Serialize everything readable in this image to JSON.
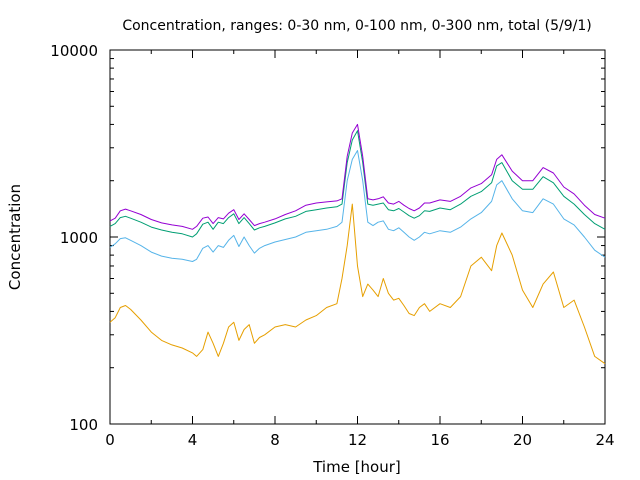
{
  "chart_data": {
    "type": "line",
    "title": "Concentration, ranges: 0-30 nm, 0-100 nm, 0-300 nm, total (5/9/1)",
    "xlabel": "Time [hour]",
    "ylabel": "Concentration",
    "xlim": [
      0,
      24
    ],
    "ylim": [
      100,
      10000
    ],
    "yscale": "log",
    "grid": false,
    "legend": "none",
    "x_ticks": [
      0,
      4,
      8,
      12,
      16,
      20,
      24
    ],
    "x_tick_labels": [
      "0",
      "4",
      "8",
      "12",
      "16",
      "20",
      "24"
    ],
    "y_ticks": [
      100,
      1000,
      10000
    ],
    "y_tick_labels": [
      "100",
      "1000",
      "10000"
    ],
    "x": [
      0,
      0.25,
      0.5,
      0.75,
      1,
      1.5,
      2,
      2.5,
      3,
      3.5,
      4,
      4.2,
      4.5,
      4.75,
      5,
      5.25,
      5.5,
      5.75,
      6,
      6.25,
      6.5,
      6.75,
      7,
      7.25,
      7.5,
      8,
      8.5,
      9,
      9.5,
      10,
      10.5,
      11,
      11.25,
      11.5,
      11.75,
      12,
      12.25,
      12.5,
      12.75,
      13,
      13.25,
      13.5,
      13.75,
      14,
      14.25,
      14.5,
      14.75,
      15,
      15.25,
      15.5,
      16,
      16.5,
      17,
      17.5,
      18,
      18.5,
      18.75,
      19,
      19.5,
      20,
      20.5,
      21,
      21.5,
      22,
      22.5,
      23,
      23.5,
      24
    ],
    "series": [
      {
        "color": "#e69f00",
        "values": [
          350,
          370,
          420,
          430,
          410,
          360,
          310,
          280,
          265,
          255,
          240,
          230,
          250,
          310,
          270,
          230,
          270,
          330,
          350,
          280,
          320,
          340,
          270,
          290,
          300,
          330,
          340,
          330,
          360,
          380,
          420,
          440,
          600,
          900,
          1500,
          700,
          480,
          560,
          520,
          480,
          600,
          500,
          460,
          470,
          430,
          390,
          380,
          420,
          440,
          400,
          440,
          420,
          480,
          700,
          780,
          660,
          900,
          1050,
          800,
          520,
          420,
          560,
          650,
          420,
          460,
          330,
          230,
          210
        ]
      },
      {
        "color": "#56b4e9",
        "values": [
          880,
          920,
          980,
          990,
          960,
          900,
          830,
          790,
          770,
          760,
          740,
          760,
          870,
          900,
          830,
          900,
          880,
          960,
          1020,
          890,
          1000,
          900,
          820,
          870,
          900,
          940,
          970,
          1000,
          1060,
          1080,
          1100,
          1140,
          1200,
          2000,
          2600,
          2900,
          2000,
          1200,
          1150,
          1200,
          1220,
          1100,
          1080,
          1120,
          1060,
          1000,
          960,
          1000,
          1060,
          1040,
          1080,
          1060,
          1130,
          1250,
          1350,
          1550,
          1900,
          2000,
          1600,
          1380,
          1350,
          1600,
          1500,
          1250,
          1160,
          1000,
          850,
          780
        ]
      },
      {
        "color": "#009e73",
        "values": [
          1140,
          1180,
          1270,
          1290,
          1260,
          1200,
          1130,
          1090,
          1060,
          1040,
          1000,
          1040,
          1170,
          1200,
          1100,
          1200,
          1180,
          1270,
          1330,
          1180,
          1270,
          1180,
          1090,
          1120,
          1140,
          1190,
          1250,
          1290,
          1370,
          1400,
          1430,
          1450,
          1500,
          2500,
          3300,
          3700,
          2500,
          1500,
          1480,
          1500,
          1520,
          1400,
          1380,
          1420,
          1360,
          1300,
          1260,
          1300,
          1380,
          1370,
          1430,
          1400,
          1500,
          1650,
          1750,
          1950,
          2400,
          2500,
          2000,
          1800,
          1800,
          2100,
          1950,
          1650,
          1500,
          1320,
          1180,
          1100
        ]
      },
      {
        "color": "#9400d3",
        "values": [
          1220,
          1260,
          1380,
          1410,
          1380,
          1320,
          1240,
          1190,
          1160,
          1140,
          1100,
          1140,
          1260,
          1280,
          1180,
          1270,
          1250,
          1340,
          1400,
          1240,
          1330,
          1240,
          1150,
          1180,
          1200,
          1250,
          1320,
          1380,
          1480,
          1520,
          1540,
          1560,
          1600,
          2700,
          3600,
          4000,
          2700,
          1600,
          1580,
          1600,
          1640,
          1520,
          1500,
          1550,
          1480,
          1420,
          1380,
          1430,
          1520,
          1520,
          1580,
          1550,
          1650,
          1830,
          1930,
          2150,
          2600,
          2750,
          2250,
          2000,
          2000,
          2350,
          2200,
          1850,
          1700,
          1480,
          1320,
          1260
        ]
      }
    ]
  }
}
